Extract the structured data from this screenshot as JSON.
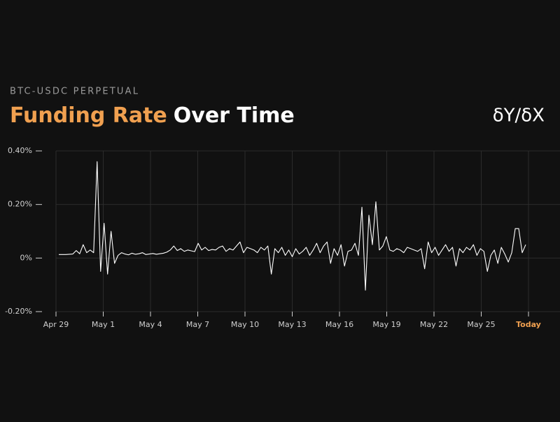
{
  "chart_data": {
    "type": "line",
    "subtitle": "BTC-USDC PERPETUAL",
    "title_highlight": "Funding Rate",
    "title": "Over Time",
    "logo": "δY/δX",
    "highlight_color": "#f0a050",
    "x_ticks": [
      "Apr 29",
      "May 1",
      "May 4",
      "May 7",
      "May 10",
      "May 13",
      "May 16",
      "May 19",
      "May 22",
      "May 25",
      "Today"
    ],
    "highlight_last_tick": true,
    "ylim": [
      -0.2,
      0.4
    ],
    "yticks": [
      {
        "value": -0.2,
        "label": "-0.20%"
      },
      {
        "value": 0,
        "label": "0%"
      },
      {
        "value": 0.2,
        "label": "0.20%"
      },
      {
        "value": 0.4,
        "label": "0.40%"
      }
    ],
    "grid": true,
    "series": [
      {
        "name": "Funding Rate",
        "color": "#ffffff",
        "values": [
          0.013,
          0.013,
          0.013,
          0.014,
          0.015,
          0.028,
          0.016,
          0.05,
          0.02,
          0.03,
          0.02,
          0.36,
          -0.05,
          0.13,
          -0.06,
          0.1,
          -0.02,
          0.01,
          0.02,
          0.015,
          0.012,
          0.018,
          0.014,
          0.016,
          0.02,
          0.013,
          0.015,
          0.017,
          0.014,
          0.016,
          0.018,
          0.022,
          0.03,
          0.045,
          0.028,
          0.035,
          0.025,
          0.03,
          0.027,
          0.024,
          0.055,
          0.03,
          0.04,
          0.028,
          0.032,
          0.03,
          0.04,
          0.045,
          0.025,
          0.035,
          0.03,
          0.045,
          0.06,
          0.02,
          0.04,
          0.035,
          0.03,
          0.02,
          0.04,
          0.03,
          0.045,
          -0.06,
          0.035,
          0.02,
          0.04,
          0.01,
          0.03,
          0.005,
          0.035,
          0.015,
          0.025,
          0.04,
          0.01,
          0.03,
          0.055,
          0.02,
          0.045,
          0.06,
          -0.02,
          0.035,
          0.01,
          0.05,
          -0.03,
          0.025,
          0.03,
          0.055,
          0.01,
          0.19,
          -0.12,
          0.16,
          0.05,
          0.21,
          0.03,
          0.045,
          0.08,
          0.03,
          0.025,
          0.035,
          0.03,
          0.02,
          0.04,
          0.035,
          0.03,
          0.025,
          0.035,
          -0.04,
          0.06,
          0.02,
          0.04,
          0.01,
          0.03,
          0.05,
          0.025,
          0.04,
          -0.03,
          0.035,
          0.02,
          0.04,
          0.03,
          0.05,
          0.01,
          0.035,
          0.025,
          -0.05,
          0.01,
          0.03,
          -0.02,
          0.04,
          0.015,
          -0.015,
          0.02,
          0.11,
          0.11,
          0.02,
          0.05
        ]
      }
    ]
  }
}
